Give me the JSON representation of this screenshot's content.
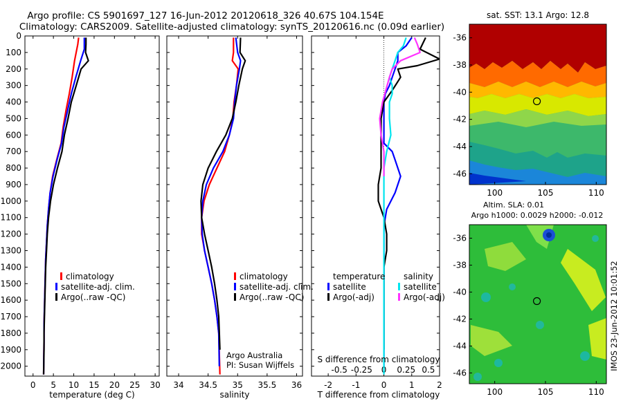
{
  "title": {
    "line1": "Argo profile: CS 5901697_127 16-Jun-2012 20120618_326 40.67S 104.154E",
    "line2": "Climatology: CARS2009. Satellite-adjusted climatology: synTS_20120616.nc (0.09d earlier)"
  },
  "side_label": "IMOS 23-Jun-2012 10:01:52",
  "credit": {
    "line1": "Argo Australia",
    "line2": "PI: Susan Wijffels"
  },
  "colors": {
    "climatology": "#ff0000",
    "satellite": "#0000ff",
    "argo": "#000000",
    "s_satellite": "#00e5ee",
    "s_argo": "#ff33ff"
  },
  "legend_main": [
    "climatology",
    "satellite-adj. clim.",
    "Argo(..raw -QC)"
  ],
  "legend_diff": {
    "t_header": "temperature",
    "s_header": "salinity",
    "t_items": [
      "satellite",
      "Argo(-adj)"
    ],
    "s_items": [
      "satellite",
      "Argo(-adj)"
    ]
  },
  "chart_data": [
    {
      "type": "line",
      "xlabel": "temperature (deg C)",
      "ylabel": "",
      "xlim": [
        -2,
        31
      ],
      "ylim": [
        2060,
        0
      ],
      "xticks": [
        0,
        5,
        10,
        15,
        20,
        25,
        30
      ],
      "yticks": [
        0,
        100,
        200,
        300,
        400,
        500,
        600,
        700,
        800,
        900,
        1000,
        1100,
        1200,
        1300,
        1400,
        1500,
        1600,
        1700,
        1800,
        1900,
        2000
      ],
      "series": [
        {
          "name": "climatology",
          "color": "#ff0000",
          "x": [
            11.2,
            11.0,
            10.2,
            9.6,
            8.9,
            8.1,
            7.4,
            6.9,
            5.8,
            4.8,
            4.2,
            3.8,
            3.5,
            3.3,
            3.1,
            3.0,
            2.9,
            2.8,
            2.7,
            2.7,
            2.6
          ],
          "y": [
            10,
            50,
            150,
            250,
            350,
            450,
            550,
            650,
            750,
            850,
            950,
            1050,
            1150,
            1250,
            1350,
            1450,
            1550,
            1650,
            1750,
            1850,
            2050
          ]
        },
        {
          "name": "satellite-adj. clim.",
          "color": "#0000ff",
          "x": [
            12.6,
            12.6,
            11.7,
            10.5,
            9.4,
            8.5,
            7.6,
            7.0,
            5.9,
            4.9,
            4.2,
            3.8,
            3.5,
            3.3,
            3.1,
            3.0,
            2.9,
            2.8,
            2.7,
            2.7,
            2.6
          ],
          "y": [
            10,
            80,
            150,
            250,
            350,
            450,
            550,
            650,
            750,
            850,
            950,
            1050,
            1150,
            1250,
            1350,
            1450,
            1550,
            1650,
            1750,
            1850,
            2050
          ]
        },
        {
          "name": "Argo(..raw -QC)",
          "color": "#000000",
          "x": [
            13.0,
            13.0,
            12.9,
            13.6,
            11.8,
            10.6,
            9.4,
            8.6,
            7.7,
            7.1,
            6.0,
            5.0,
            4.3,
            3.8,
            3.5,
            3.3,
            3.1,
            3.0,
            2.9,
            2.8,
            2.7,
            2.7,
            2.6
          ],
          "y": [
            10,
            50,
            100,
            150,
            200,
            300,
            400,
            500,
            600,
            700,
            800,
            900,
            1000,
            1100,
            1200,
            1300,
            1400,
            1500,
            1600,
            1700,
            1800,
            1900,
            2050
          ]
        }
      ]
    },
    {
      "type": "line",
      "xlabel": "salinity",
      "ylabel": "",
      "xlim": [
        33.8,
        36.1
      ],
      "ylim": [
        2060,
        0
      ],
      "xticks": [
        34,
        34.5,
        35,
        35.5,
        36
      ],
      "series": [
        {
          "name": "climatology",
          "color": "#ff0000",
          "x": [
            34.93,
            34.93,
            34.91,
            35.01,
            34.98,
            34.94,
            34.92,
            34.86,
            34.78,
            34.65,
            34.52,
            34.43,
            34.39,
            34.39,
            34.44,
            34.5,
            34.56,
            34.61,
            34.65,
            34.68,
            34.7
          ],
          "y": [
            10,
            100,
            150,
            200,
            300,
            400,
            500,
            600,
            700,
            800,
            900,
            1000,
            1100,
            1200,
            1300,
            1400,
            1500,
            1600,
            1700,
            1800,
            2050
          ]
        },
        {
          "name": "satellite-adj. clim.",
          "color": "#0000ff",
          "x": [
            34.97,
            35.0,
            35.05,
            35.03,
            34.98,
            34.95,
            34.93,
            34.86,
            34.75,
            34.59,
            34.47,
            34.41,
            34.39,
            34.4,
            34.44,
            34.5,
            34.56,
            34.61,
            34.65,
            34.68,
            34.69
          ],
          "y": [
            10,
            100,
            150,
            200,
            300,
            400,
            500,
            600,
            700,
            800,
            900,
            1000,
            1100,
            1200,
            1300,
            1400,
            1500,
            1600,
            1700,
            1800,
            2000
          ]
        },
        {
          "name": "Argo(..raw -QC)",
          "color": "#000000",
          "x": [
            35.05,
            35.04,
            35.13,
            35.08,
            35.02,
            34.97,
            34.91,
            34.8,
            34.64,
            34.5,
            34.41,
            34.38,
            34.39,
            34.44,
            34.5,
            34.56,
            34.61,
            34.65,
            34.68,
            34.7
          ],
          "y": [
            10,
            100,
            150,
            200,
            300,
            400,
            500,
            600,
            700,
            800,
            900,
            1000,
            1100,
            1200,
            1300,
            1400,
            1500,
            1600,
            1700,
            1900
          ]
        }
      ]
    },
    {
      "type": "line",
      "xlabel": "T difference from climatology",
      "xlabel_top": "S difference from climatology",
      "xlim": [
        -2.6,
        2.0
      ],
      "ylim": [
        2060,
        0
      ],
      "xticks": [
        -2,
        -1,
        0,
        1,
        2
      ],
      "xticks_top": [
        "-0.5",
        "-0.25",
        "0",
        "0.25",
        "0.5"
      ],
      "series": [
        {
          "name": "T satellite",
          "color": "#0000ff",
          "x": [
            1.0,
            0.8,
            0.5,
            0.5,
            0.4,
            0.3,
            0.2,
            0.05,
            0.0,
            0.0,
            0.0,
            0.0,
            0.3,
            0.4,
            0.6,
            0.4,
            0.1,
            0.0,
            0.0,
            0.0,
            0.0,
            0.0,
            0.0,
            0.0,
            0.0,
            0.0
          ],
          "y": [
            10,
            60,
            100,
            150,
            200,
            250,
            300,
            350,
            400,
            500,
            600,
            650,
            700,
            750,
            850,
            950,
            1050,
            1150,
            1250,
            1400,
            1500,
            1600,
            1700,
            1800,
            1900,
            2000
          ]
        },
        {
          "name": "T Argo(-adj)",
          "color": "#000000",
          "x": [
            1.5,
            1.3,
            2.0,
            1.2,
            0.5,
            0.6,
            0.3,
            0.0,
            -0.1,
            -0.1,
            -0.1,
            -0.1,
            -0.2,
            -0.2,
            0.0,
            0.1,
            0.1,
            0.0,
            0.0,
            0.0,
            0.0
          ],
          "y": [
            10,
            80,
            140,
            180,
            200,
            250,
            330,
            400,
            500,
            600,
            700,
            800,
            900,
            1000,
            1100,
            1200,
            1300,
            1400,
            1500,
            1700,
            1900
          ]
        },
        {
          "name": "S satellite",
          "color": "#00e5ee",
          "x": [
            0.8,
            0.7,
            0.5,
            0.4,
            0.3,
            0.2,
            0.3,
            0.3,
            0.2,
            0.2,
            0.25,
            0.1,
            0.0,
            0.0,
            0.0,
            0.0,
            0.0,
            0.0,
            0.0,
            0.0,
            0.0,
            0.0,
            0.0
          ],
          "y": [
            10,
            60,
            100,
            150,
            200,
            250,
            300,
            350,
            400,
            500,
            600,
            700,
            800,
            900,
            1000,
            1100,
            1200,
            1300,
            1400,
            1600,
            1800,
            1950,
            2050
          ]
        },
        {
          "name": "S Argo(-adj)",
          "color": "#ff33ff",
          "x": [
            1.1,
            1.2,
            1.3,
            0.6,
            0.3,
            0.2,
            -0.05,
            -0.15,
            -0.1,
            -0.05,
            0.0,
            0.0,
            0.0,
            0.0
          ],
          "y": [
            10,
            50,
            100,
            150,
            200,
            250,
            400,
            500,
            600,
            650,
            700,
            750,
            800,
            850
          ]
        }
      ]
    }
  ],
  "map_top": {
    "title": "sat. SST: 13.1  Argo: 12.8",
    "xticks": [
      "100",
      "105",
      "110"
    ],
    "yticks": [
      "-36",
      "-38",
      "-40",
      "-42",
      "-44",
      "-46"
    ],
    "xlim": [
      97.5,
      111
    ],
    "ylim": [
      -46.8,
      -35
    ],
    "marker": {
      "lon": 104.154,
      "lat": -40.67
    }
  },
  "map_bottom": {
    "title_line1": "Altim. SLA: 0.01",
    "title_line2": "Argo h1000: 0.0029 h2000: -0.012",
    "xticks": [
      "100",
      "105",
      "110"
    ],
    "yticks": [
      "-36",
      "-38",
      "-40",
      "-42",
      "-44",
      "-46"
    ],
    "xlim": [
      97.5,
      111
    ],
    "ylim": [
      -46.8,
      -35
    ],
    "marker": {
      "lon": 104.154,
      "lat": -40.67
    }
  }
}
